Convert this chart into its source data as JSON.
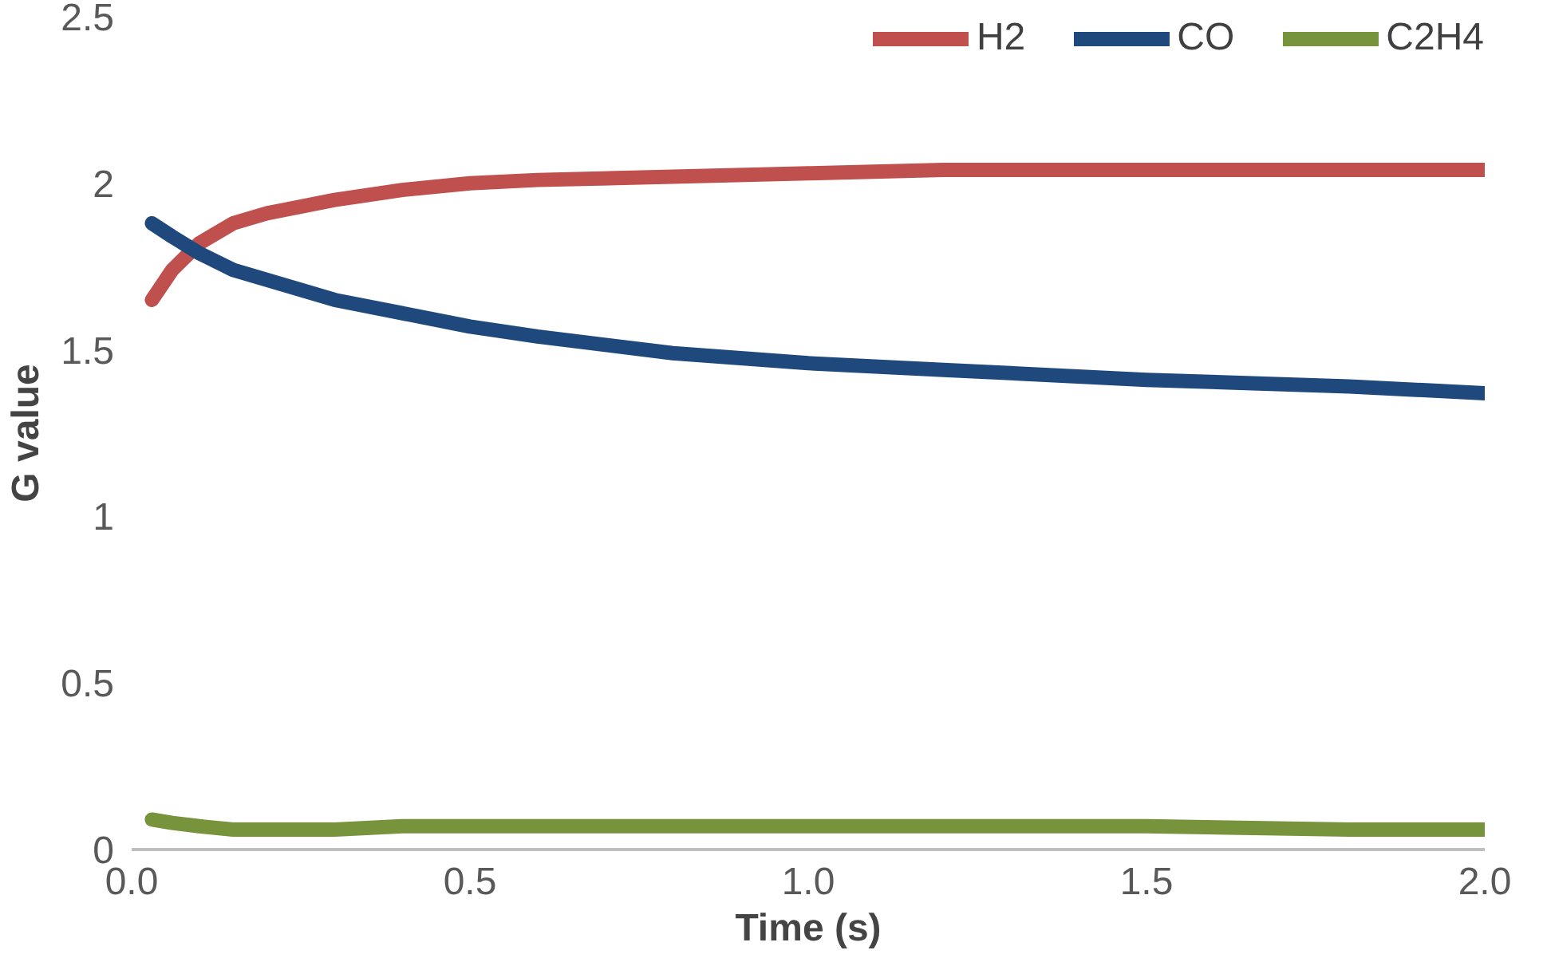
{
  "chart_data": {
    "type": "line",
    "xlabel": "Time (s)",
    "ylabel": "G value",
    "x": [
      0.03,
      0.06,
      0.1,
      0.15,
      0.2,
      0.3,
      0.4,
      0.5,
      0.6,
      0.8,
      1.0,
      1.2,
      1.5,
      1.8,
      2.0
    ],
    "series": [
      {
        "name": "H2",
        "color": "#c0504d",
        "values": [
          1.65,
          1.74,
          1.82,
          1.88,
          1.91,
          1.95,
          1.98,
          2.0,
          2.01,
          2.02,
          2.03,
          2.04,
          2.04,
          2.04,
          2.04
        ]
      },
      {
        "name": "CO",
        "color": "#1f497d",
        "values": [
          1.88,
          1.84,
          1.79,
          1.74,
          1.71,
          1.65,
          1.61,
          1.57,
          1.54,
          1.49,
          1.46,
          1.44,
          1.41,
          1.39,
          1.37
        ]
      },
      {
        "name": "C2H4",
        "color": "#77933c",
        "values": [
          0.09,
          0.08,
          0.07,
          0.06,
          0.06,
          0.06,
          0.07,
          0.07,
          0.07,
          0.07,
          0.07,
          0.07,
          0.07,
          0.06,
          0.06
        ]
      }
    ],
    "xlim": [
      0,
      2.0
    ],
    "ylim": [
      0,
      2.5
    ],
    "xticks": [
      {
        "value": 0,
        "label": "0.0"
      },
      {
        "value": 0.5,
        "label": "0.5"
      },
      {
        "value": 1.0,
        "label": "1.0"
      },
      {
        "value": 1.5,
        "label": "1.5"
      },
      {
        "value": 2.0,
        "label": "2.0"
      }
    ],
    "yticks": [
      0,
      0.5,
      1,
      1.5,
      2,
      2.5
    ],
    "grid": false,
    "legend": "top right",
    "marker": "none",
    "line_style": "solid"
  }
}
